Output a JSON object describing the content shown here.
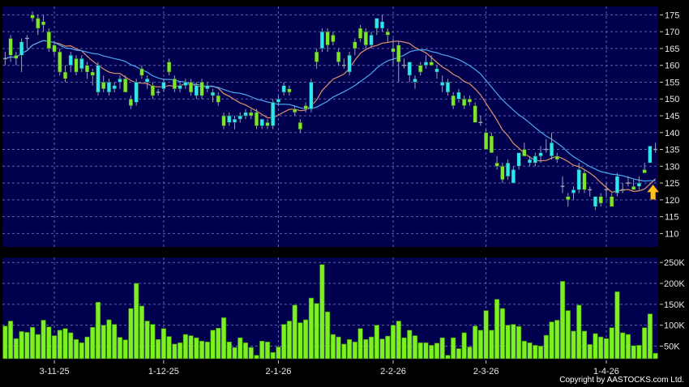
{
  "chart_data": [
    {
      "type": "candlestick",
      "price_axis": {
        "ticks": [
          110,
          115,
          120,
          125,
          130,
          135,
          140,
          145,
          150,
          155,
          160,
          165,
          170,
          175
        ],
        "ylim": [
          106,
          177.5
        ],
        "position": "right"
      },
      "x_ticks": [
        {
          "label": "3-11-25",
          "index": 9
        },
        {
          "label": "1-12-25",
          "index": 29
        },
        {
          "label": "2-1-26",
          "index": 50
        },
        {
          "label": "2-2-26",
          "index": 71
        },
        {
          "label": "2-3-26",
          "index": 88
        },
        {
          "label": "1-4-26",
          "index": 110
        }
      ],
      "grid": true,
      "colors": {
        "up": "#2ee6f2",
        "down": "#7fe52b",
        "unchanged": "#a0a0b0",
        "ma_short": "#e0906a",
        "ma_long": "#4aa8f0",
        "background": "#00004e",
        "marker": "#ffc21a"
      },
      "moving_averages": [
        {
          "period": 10,
          "color": "#e0906a"
        },
        {
          "period": 20,
          "color": "#4aa8f0"
        }
      ],
      "marker": {
        "icon": "up-arrow-icon",
        "index": 119
      },
      "ohlc": [
        [
          162,
          164,
          160,
          162
        ],
        [
          168,
          169,
          161,
          163
        ],
        [
          163,
          164,
          160,
          162
        ],
        [
          163,
          168,
          158,
          167
        ],
        [
          168,
          169,
          165,
          168
        ],
        [
          175,
          176,
          173,
          174
        ],
        [
          174,
          175,
          169,
          171
        ],
        [
          173,
          175,
          170,
          172
        ],
        [
          170,
          171,
          164,
          165
        ],
        [
          166,
          167,
          163,
          164
        ],
        [
          164,
          165,
          157,
          158
        ],
        [
          158,
          160,
          155,
          156
        ],
        [
          160,
          164,
          158,
          163
        ],
        [
          162,
          163,
          157,
          158
        ],
        [
          159,
          163,
          158,
          162
        ],
        [
          160,
          161,
          156,
          158
        ],
        [
          158,
          159,
          154,
          157
        ],
        [
          152,
          161,
          151,
          160
        ],
        [
          155,
          157,
          152,
          153
        ],
        [
          152,
          156,
          151,
          155
        ],
        [
          153,
          155,
          152,
          154
        ],
        [
          155,
          157,
          153,
          156
        ],
        [
          156,
          157,
          152,
          152
        ],
        [
          150,
          151,
          147,
          148
        ],
        [
          149,
          156,
          148,
          155
        ],
        [
          159,
          160,
          156,
          157
        ],
        [
          155,
          157,
          153,
          156
        ],
        [
          154,
          155,
          150,
          151
        ],
        [
          152,
          153,
          151,
          152
        ],
        [
          153,
          156,
          152,
          155
        ],
        [
          161,
          162,
          157,
          158
        ],
        [
          156,
          157,
          152,
          153
        ],
        [
          153,
          155,
          152,
          154
        ],
        [
          154,
          156,
          153,
          155
        ],
        [
          155,
          156,
          151,
          152
        ],
        [
          151,
          155,
          150,
          154
        ],
        [
          155,
          156,
          150,
          151
        ],
        [
          153,
          155,
          152,
          154
        ],
        [
          151,
          153,
          149,
          152
        ],
        [
          151,
          152,
          148,
          149
        ],
        [
          145,
          146,
          141,
          142
        ],
        [
          143,
          146,
          142,
          145
        ],
        [
          143,
          145,
          141,
          144
        ],
        [
          144,
          146,
          143,
          145
        ],
        [
          145,
          147,
          144,
          146
        ],
        [
          146,
          147,
          144,
          145
        ],
        [
          146,
          147,
          141,
          142
        ],
        [
          142,
          144,
          141,
          144
        ],
        [
          143,
          144,
          141,
          142
        ],
        [
          142,
          150,
          141,
          149
        ],
        [
          149,
          151,
          148,
          150
        ],
        [
          152,
          155,
          151,
          154
        ],
        [
          153,
          154,
          151,
          152
        ],
        [
          147,
          148,
          145,
          146
        ],
        [
          143,
          144,
          140,
          141
        ],
        [
          148,
          149,
          146,
          147
        ],
        [
          147,
          156,
          146,
          155
        ],
        [
          164,
          165,
          159,
          161
        ],
        [
          165,
          171,
          164,
          170
        ],
        [
          170,
          171,
          164,
          166
        ],
        [
          169,
          170,
          166,
          167
        ],
        [
          164,
          165,
          160,
          161
        ],
        [
          160,
          162,
          159,
          160
        ],
        [
          158,
          164,
          157,
          163
        ],
        [
          167,
          168,
          163,
          165
        ],
        [
          171,
          172,
          167,
          168
        ],
        [
          170,
          171,
          165,
          166
        ],
        [
          166,
          170,
          165,
          169
        ],
        [
          171,
          174,
          169,
          174
        ],
        [
          171,
          175,
          170,
          173
        ],
        [
          170,
          171,
          167,
          169
        ],
        [
          165,
          168,
          160,
          164
        ],
        [
          166,
          167,
          155,
          161
        ],
        [
          160,
          162,
          159,
          160
        ],
        [
          157,
          161,
          155,
          161
        ],
        [
          155,
          157,
          153,
          156
        ],
        [
          160,
          161,
          157,
          158
        ],
        [
          160,
          163,
          159,
          161
        ],
        [
          161,
          163,
          160,
          160
        ],
        [
          158,
          160,
          156,
          159
        ],
        [
          154,
          157,
          152,
          155
        ],
        [
          152,
          156,
          151,
          155
        ],
        [
          151,
          152,
          147,
          148
        ],
        [
          150,
          153,
          149,
          152
        ],
        [
          150,
          151,
          147,
          148
        ],
        [
          150,
          151,
          148,
          149
        ],
        [
          148,
          149,
          143,
          143
        ],
        [
          143,
          145,
          142,
          143
        ],
        [
          140,
          141,
          135,
          135
        ],
        [
          139,
          140,
          134,
          134
        ],
        [
          131,
          133,
          129,
          130
        ],
        [
          130,
          131,
          125,
          126
        ],
        [
          127,
          132,
          126,
          131
        ],
        [
          125,
          130,
          125,
          129
        ],
        [
          130,
          134,
          129,
          134
        ],
        [
          135,
          137,
          133,
          133
        ],
        [
          131,
          133,
          130,
          132
        ],
        [
          131,
          134,
          130,
          133
        ],
        [
          133,
          136,
          131,
          134
        ],
        [
          135,
          138,
          134,
          135
        ],
        [
          133,
          140,
          132,
          137
        ],
        [
          133,
          134,
          131,
          132
        ],
        [
          124,
          127,
          122,
          124
        ],
        [
          121,
          122,
          118,
          120
        ],
        [
          122,
          124,
          120,
          123
        ],
        [
          123,
          131,
          122,
          129
        ],
        [
          128,
          129,
          122,
          123
        ],
        [
          123,
          124,
          121,
          123
        ],
        [
          118,
          121,
          117,
          121
        ],
        [
          121,
          122,
          118,
          119
        ],
        [
          123,
          125,
          121,
          123
        ],
        [
          121,
          122,
          118,
          118
        ],
        [
          122,
          128,
          121,
          127
        ],
        [
          123,
          125,
          122,
          123
        ],
        [
          125,
          127,
          124,
          125
        ],
        [
          124,
          126,
          123,
          123
        ],
        [
          124,
          127,
          123,
          125
        ],
        [
          129,
          131,
          128,
          128
        ],
        [
          131,
          136,
          131,
          136
        ],
        [
          135,
          137,
          134,
          135
        ]
      ]
    },
    {
      "type": "bar",
      "volume_axis": {
        "ticks": [
          "50K",
          "100K",
          "150K",
          "200K",
          "250K"
        ],
        "tick_values": [
          50000,
          100000,
          150000,
          200000,
          250000
        ],
        "ylim": [
          20000,
          262000
        ],
        "position": "right"
      },
      "bar_color": "#7cf020",
      "values_k": [
        98,
        110,
        68,
        85,
        83,
        95,
        78,
        112,
        96,
        75,
        88,
        92,
        82,
        66,
        58,
        72,
        95,
        155,
        100,
        113,
        102,
        71,
        65,
        140,
        200,
        146,
        110,
        102,
        66,
        92,
        73,
        55,
        58,
        78,
        75,
        70,
        62,
        60,
        88,
        93,
        118,
        60,
        47,
        70,
        58,
        47,
        28,
        62,
        60,
        35,
        48,
        102,
        110,
        148,
        106,
        113,
        165,
        152,
        245,
        132,
        78,
        72,
        55,
        66,
        60,
        92,
        66,
        72,
        100,
        67,
        74,
        100,
        110,
        70,
        88,
        75,
        58,
        58,
        52,
        57,
        70,
        28,
        70,
        44,
        82,
        48,
        98,
        88,
        135,
        88,
        162,
        140,
        100,
        102,
        97,
        62,
        58,
        52,
        50,
        76,
        108,
        112,
        205,
        135,
        86,
        148,
        86,
        54,
        80,
        72,
        68,
        94,
        180,
        82,
        78,
        51,
        52,
        94,
        127,
        33
      ]
    }
  ],
  "footer": {
    "copyright": "Copyright by AASTOCKS.com Ltd."
  }
}
